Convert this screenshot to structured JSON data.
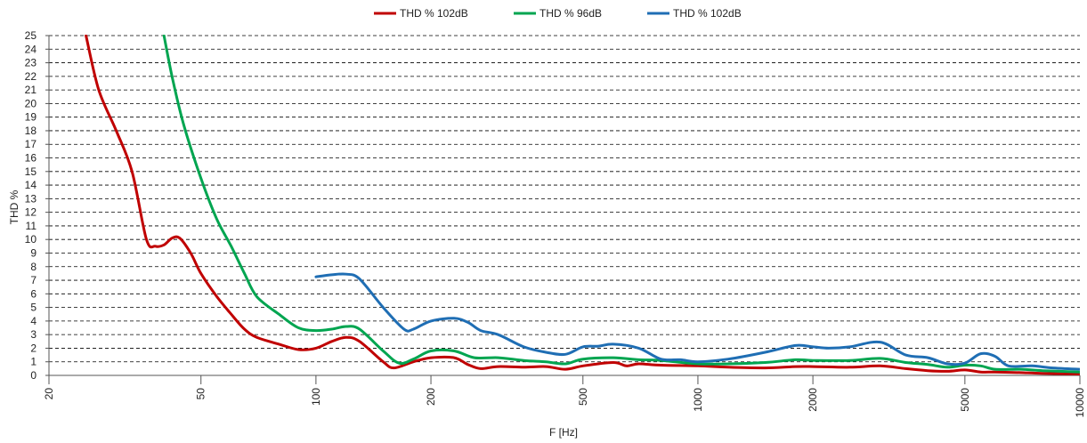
{
  "chart_data": {
    "type": "line",
    "xlabel": "F [Hz]",
    "ylabel": "THD %",
    "xscale": "log",
    "xlim": [
      20,
      10000
    ],
    "ylim": [
      0,
      25
    ],
    "grid": "horizontal dashed",
    "legend_position": "top-center",
    "y_ticks": [
      0,
      1,
      2,
      3,
      4,
      5,
      6,
      7,
      8,
      9,
      10,
      11,
      12,
      13,
      14,
      15,
      16,
      17,
      18,
      19,
      20,
      21,
      22,
      23,
      24,
      25
    ],
    "x_ticks": [
      20,
      50,
      100,
      200,
      500,
      1000,
      2000,
      5000,
      10000
    ],
    "series": [
      {
        "name": "THD % 102dB",
        "color": "#c00000",
        "points": [
          [
            25,
            25
          ],
          [
            27,
            21
          ],
          [
            30,
            18
          ],
          [
            33,
            15
          ],
          [
            36,
            10
          ],
          [
            38,
            9.5
          ],
          [
            40,
            9.6
          ],
          [
            42,
            10.1
          ],
          [
            44,
            10.1
          ],
          [
            47,
            9
          ],
          [
            50,
            7.5
          ],
          [
            55,
            5.8
          ],
          [
            60,
            4.5
          ],
          [
            65,
            3.4
          ],
          [
            70,
            2.8
          ],
          [
            80,
            2.3
          ],
          [
            90,
            1.9
          ],
          [
            100,
            2.0
          ],
          [
            110,
            2.5
          ],
          [
            120,
            2.8
          ],
          [
            130,
            2.5
          ],
          [
            150,
            1.0
          ],
          [
            160,
            0.55
          ],
          [
            180,
            1.0
          ],
          [
            200,
            1.3
          ],
          [
            230,
            1.3
          ],
          [
            250,
            0.8
          ],
          [
            270,
            0.5
          ],
          [
            300,
            0.65
          ],
          [
            350,
            0.6
          ],
          [
            400,
            0.65
          ],
          [
            450,
            0.45
          ],
          [
            500,
            0.7
          ],
          [
            600,
            0.95
          ],
          [
            650,
            0.7
          ],
          [
            700,
            0.85
          ],
          [
            800,
            0.75
          ],
          [
            1000,
            0.7
          ],
          [
            1200,
            0.6
          ],
          [
            1500,
            0.55
          ],
          [
            1800,
            0.65
          ],
          [
            2000,
            0.65
          ],
          [
            2500,
            0.6
          ],
          [
            3000,
            0.7
          ],
          [
            3500,
            0.5
          ],
          [
            4000,
            0.35
          ],
          [
            4500,
            0.3
          ],
          [
            5000,
            0.4
          ],
          [
            5500,
            0.25
          ],
          [
            6000,
            0.25
          ],
          [
            7000,
            0.2
          ],
          [
            8000,
            0.15
          ],
          [
            10000,
            0.1
          ]
        ]
      },
      {
        "name": "THD % 96dB",
        "color": "#00a550",
        "points": [
          [
            40,
            25
          ],
          [
            42,
            22
          ],
          [
            45,
            18.5
          ],
          [
            50,
            14.5
          ],
          [
            55,
            11.5
          ],
          [
            60,
            9.5
          ],
          [
            65,
            7.5
          ],
          [
            70,
            5.8
          ],
          [
            80,
            4.5
          ],
          [
            90,
            3.5
          ],
          [
            100,
            3.3
          ],
          [
            110,
            3.4
          ],
          [
            120,
            3.6
          ],
          [
            130,
            3.4
          ],
          [
            150,
            1.8
          ],
          [
            165,
            0.9
          ],
          [
            180,
            1.2
          ],
          [
            200,
            1.8
          ],
          [
            230,
            1.8
          ],
          [
            260,
            1.3
          ],
          [
            300,
            1.3
          ],
          [
            350,
            1.1
          ],
          [
            400,
            1.0
          ],
          [
            450,
            0.85
          ],
          [
            500,
            1.2
          ],
          [
            600,
            1.3
          ],
          [
            700,
            1.15
          ],
          [
            800,
            1.1
          ],
          [
            1000,
            0.85
          ],
          [
            1200,
            0.85
          ],
          [
            1500,
            0.95
          ],
          [
            1800,
            1.15
          ],
          [
            2000,
            1.1
          ],
          [
            2500,
            1.1
          ],
          [
            3000,
            1.25
          ],
          [
            3500,
            0.95
          ],
          [
            4000,
            0.8
          ],
          [
            4500,
            0.6
          ],
          [
            5000,
            0.75
          ],
          [
            5500,
            0.7
          ],
          [
            6000,
            0.45
          ],
          [
            7000,
            0.45
          ],
          [
            8000,
            0.35
          ],
          [
            10000,
            0.25
          ]
        ]
      },
      {
        "name": "THD % 102dB",
        "color": "#1f6eb4",
        "points": [
          [
            100,
            7.25
          ],
          [
            110,
            7.4
          ],
          [
            120,
            7.45
          ],
          [
            130,
            7.1
          ],
          [
            150,
            5.0
          ],
          [
            170,
            3.4
          ],
          [
            180,
            3.4
          ],
          [
            200,
            4.0
          ],
          [
            230,
            4.2
          ],
          [
            250,
            3.9
          ],
          [
            270,
            3.3
          ],
          [
            300,
            3.0
          ],
          [
            350,
            2.1
          ],
          [
            400,
            1.7
          ],
          [
            450,
            1.55
          ],
          [
            500,
            2.1
          ],
          [
            550,
            2.15
          ],
          [
            600,
            2.3
          ],
          [
            700,
            2.0
          ],
          [
            800,
            1.2
          ],
          [
            900,
            1.15
          ],
          [
            1000,
            1.0
          ],
          [
            1200,
            1.2
          ],
          [
            1500,
            1.7
          ],
          [
            1800,
            2.2
          ],
          [
            2000,
            2.1
          ],
          [
            2200,
            2.0
          ],
          [
            2500,
            2.1
          ],
          [
            3000,
            2.45
          ],
          [
            3500,
            1.5
          ],
          [
            4000,
            1.3
          ],
          [
            4500,
            0.85
          ],
          [
            5000,
            0.9
          ],
          [
            5500,
            1.6
          ],
          [
            6000,
            1.4
          ],
          [
            6500,
            0.7
          ],
          [
            7500,
            0.7
          ],
          [
            8500,
            0.55
          ],
          [
            10000,
            0.45
          ]
        ]
      }
    ]
  }
}
